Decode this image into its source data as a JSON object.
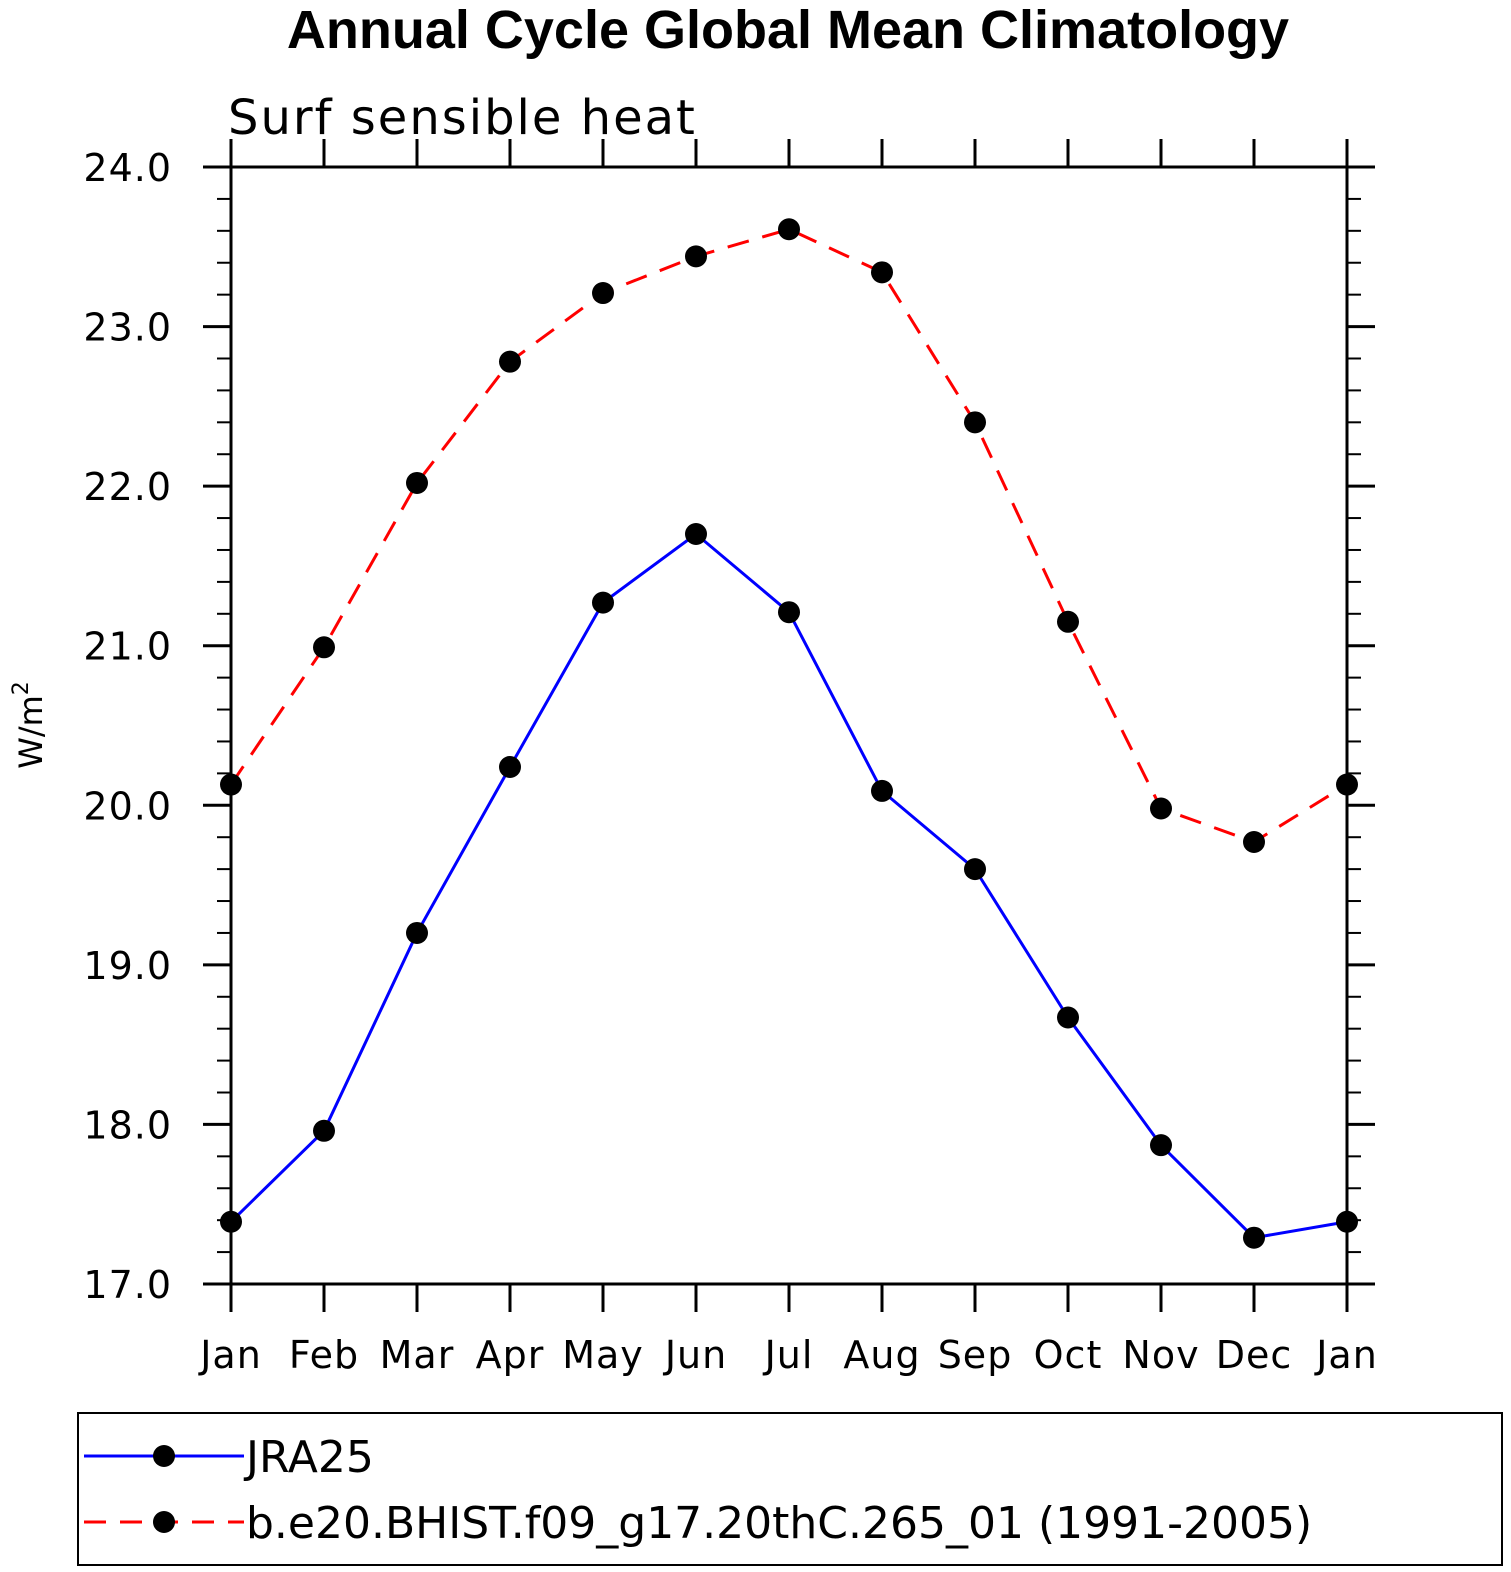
{
  "chart_data": {
    "type": "line",
    "title": "Annual Cycle Global Mean Climatology",
    "subtitle": "Surf sensible heat",
    "ylabel": "W/m",
    "ylabel_superscript": "2",
    "ylim": [
      17.0,
      24.0
    ],
    "yticks": [
      "17.0",
      "18.0",
      "19.0",
      "20.0",
      "21.0",
      "22.0",
      "23.0",
      "24.0"
    ],
    "categories": [
      "Jan",
      "Feb",
      "Mar",
      "Apr",
      "May",
      "Jun",
      "Jul",
      "Aug",
      "Sep",
      "Oct",
      "Nov",
      "Dec",
      "Jan"
    ],
    "grid": false,
    "legend_position": "bottom",
    "series": [
      {
        "name": "JRA25",
        "color": "#0000ff",
        "dash": "solid",
        "marker": "filled-circle",
        "values": [
          17.39,
          17.96,
          19.2,
          20.24,
          21.27,
          21.7,
          21.21,
          20.09,
          19.6,
          18.67,
          17.87,
          17.29,
          17.39
        ]
      },
      {
        "name": "b.e20.BHIST.f09_g17.20thC.265_01 (1991-2005)",
        "color": "#ff0000",
        "dash": "dashed",
        "marker": "filled-circle",
        "values": [
          20.13,
          20.99,
          22.02,
          22.78,
          23.21,
          23.44,
          23.61,
          23.34,
          22.4,
          21.15,
          19.98,
          19.77,
          20.13
        ]
      }
    ]
  }
}
